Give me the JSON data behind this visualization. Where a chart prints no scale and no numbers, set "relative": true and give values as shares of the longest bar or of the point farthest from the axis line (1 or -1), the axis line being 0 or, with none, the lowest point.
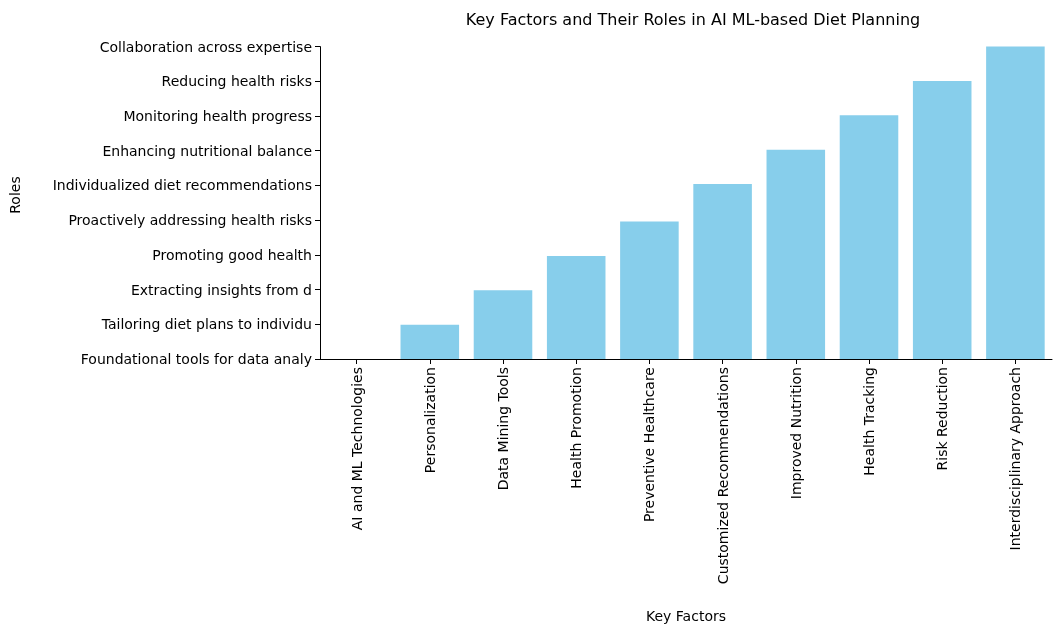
{
  "chart_data": {
    "type": "bar",
    "title": "Key Factors and Their Roles in AI ML-based Diet Planning",
    "xlabel": "Key Factors",
    "categories": [
      "AI and ML Technologies",
      "Personalization",
      "Data Mining Tools",
      "Health Promotion",
      "Preventive Healthcare",
      "Customized Recommendations",
      "Improved Nutrition",
      "Health Tracking",
      "Risk Reduction",
      "Interdisciplinary Approach"
    ],
    "values": [
      0,
      0.11,
      0.22,
      0.33,
      0.44,
      0.56,
      0.67,
      0.78,
      0.89,
      1
    ],
    "color": "#87ceeb",
    "relative": true,
    "annotations": [
      "Foundational tools for data analy",
      "Tailoring diet plans to individu",
      "Extracting insights from d",
      "Promoting good health",
      "Proactively addressing health risks",
      "Individualized diet recommendations",
      "Enhancing nutritional balance",
      "Monitoring health progress",
      "Reducing health risks",
      "Collaboration across expertise",
      "Roles"
    ],
    "grid": false
  }
}
